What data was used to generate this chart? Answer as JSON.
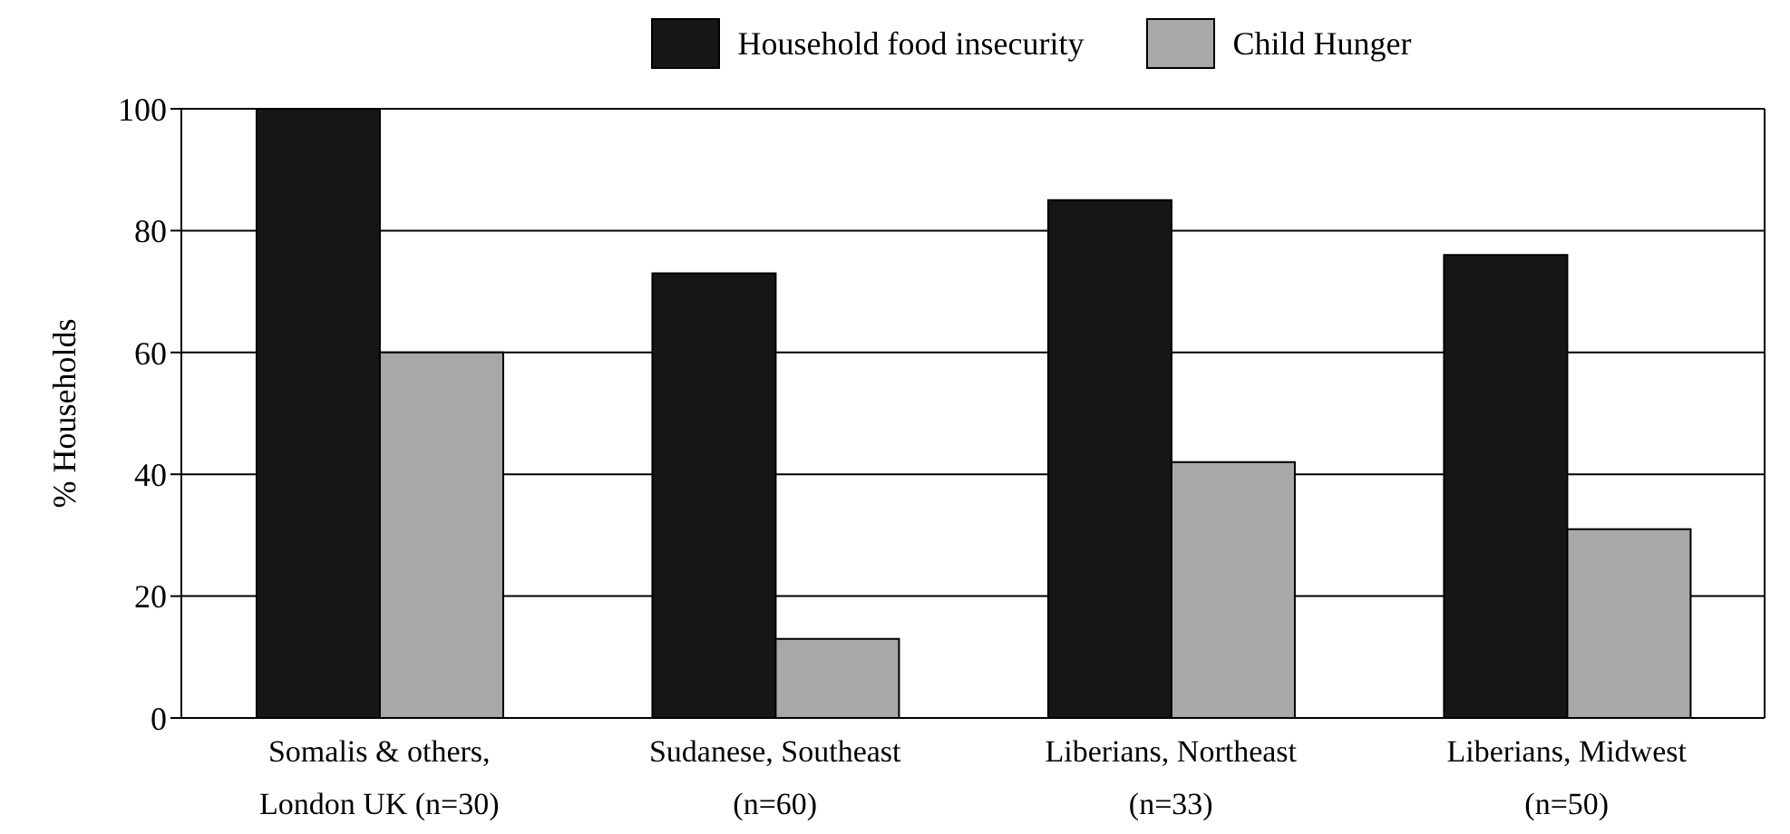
{
  "chart_data": {
    "type": "bar",
    "categories": [
      "Somalis & others, London UK (n=30)",
      "Sudanese, Southeast (n=60)",
      "Liberians, Northeast (n=33)",
      "Liberians, Midwest (n=50)"
    ],
    "series": [
      {
        "name": "Household food insecurity",
        "color": "#161616",
        "values": [
          100,
          73,
          85,
          76
        ]
      },
      {
        "name": "Child Hunger",
        "color": "#a8a8a8",
        "values": [
          60,
          13,
          42,
          31
        ]
      }
    ],
    "ylabel": "% Households",
    "ylim": [
      0,
      100
    ],
    "yticks": [
      0,
      20,
      40,
      60,
      80,
      100
    ],
    "grid": "y",
    "legend": "top"
  }
}
